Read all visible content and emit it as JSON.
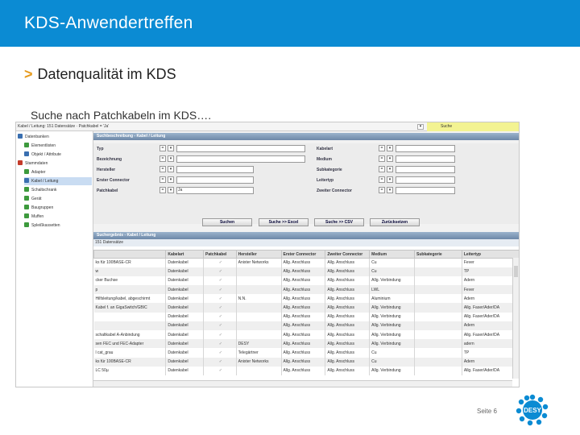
{
  "slide": {
    "title": "KDS-Anwendertreffen",
    "subtitle": "Datenqualität im KDS",
    "subtitle_marker": ">",
    "caption": "Suche nach Patchkabeln im KDS….",
    "page": "Seite 6",
    "logo_text": "DESY",
    "header_color": "#0b8bd3"
  },
  "app": {
    "path": "Kabel / Leitung: 151 Datensätze · Patchkabel = 'Ja'",
    "search_tab": "Suche",
    "sidebar": {
      "items": [
        {
          "label": "Datenbanken",
          "icon": "database-icon",
          "color": "#3a6fb0"
        },
        {
          "label": "Elementlisten",
          "icon": "list-icon",
          "color": "#3d9a3d"
        },
        {
          "label": "Objekt / Attribute",
          "icon": "attribute-icon",
          "color": "#3a6fb0"
        },
        {
          "label": "Stammdaten",
          "icon": "master-data-icon",
          "color": "#c43b2a"
        },
        {
          "label": "Adapter",
          "icon": "adapter-icon",
          "color": "#3d9a3d"
        },
        {
          "label": "Kabel / Leitung",
          "icon": "cable-icon",
          "color": "#3a6fb0"
        },
        {
          "label": "Schaltschrank",
          "icon": "cabinet-icon",
          "color": "#3d9a3d"
        },
        {
          "label": "Gerät",
          "icon": "device-icon",
          "color": "#3d9a3d"
        },
        {
          "label": "Baugruppen",
          "icon": "module-icon",
          "color": "#3d9a3d"
        },
        {
          "label": "Muffen",
          "icon": "sleeve-icon",
          "color": "#3d9a3d"
        },
        {
          "label": "Spleißkassetten",
          "icon": "splice-icon",
          "color": "#3d9a3d"
        }
      ]
    },
    "form": {
      "header": "Suchbeschreibung - Kabel / Leitung",
      "left_labels": [
        "Typ",
        "Bezeichnung",
        "Hersteller",
        "Erster Connector",
        "Patchkabel"
      ],
      "right_labels": [
        "Kabelart",
        "Medium",
        "Subkategorie",
        "Leitertyp",
        "Zweiter Connector"
      ],
      "patchkabel_value": "Ja",
      "buttons": [
        "Suchen",
        "Suche >> Excel",
        "Suche >> CSV",
        "Zurücksetzen"
      ]
    },
    "results": {
      "header": "Suchergebnis - Kabel / Leitung",
      "count": "151 Datensätze",
      "columns": [
        "",
        "Kabelart",
        "Patchkabel",
        "Hersteller",
        "Erster Connector",
        "Zweiter Connector",
        "Medium",
        "Subkategorie",
        "Leitertyp"
      ],
      "rows": [
        [
          "ks für 100BASE-CR",
          "Datenkabel",
          "✓",
          "Anixter Networks",
          "Allg. Anschluss",
          "Allg. Anschluss",
          "Cu",
          "",
          "Fever"
        ],
        [
          "w",
          "Datenkabel",
          "✓",
          "",
          "Allg. Anschluss",
          "Allg. Anschluss",
          "Cu",
          "",
          "TP"
        ],
        [
          "cker Buchse",
          "Datenkabel",
          "✓",
          "",
          "Allg. Anschluss",
          "Allg. Anschluss",
          "Allg. Verbindung",
          "",
          "Adern"
        ],
        [
          "p",
          "Datenkabel",
          "✓",
          "",
          "Allg. Anschluss",
          "Allg. Anschluss",
          "LWL",
          "",
          "Fever"
        ],
        [
          "Hilfsleitung/kabel, abgeschirmt",
          "Datenkabel",
          "✓",
          "N.N.",
          "Allg. Anschluss",
          "Allg. Anschluss",
          "Aluminium",
          "",
          "Adern"
        ],
        [
          "Kabel f. an GigaSwitch/GBIC",
          "Datenkabel",
          "✓",
          "",
          "Allg. Anschluss",
          "Allg. Anschluss",
          "Allg. Verbindung",
          "",
          "Allg. Faser/Ader/DA"
        ],
        [
          "",
          "Datenkabel",
          "✓",
          "",
          "Allg. Anschluss",
          "Allg. Anschluss",
          "Allg. Verbindung",
          "",
          "Allg. Faser/Ader/DA"
        ],
        [
          "",
          "Datenkabel",
          "✓",
          "",
          "Allg. Anschluss",
          "Allg. Anschluss",
          "Allg. Verbindung",
          "",
          "Adern"
        ],
        [
          "schaltkabel A-Anbindung",
          "Datenkabel",
          "✓",
          "",
          "Allg. Anschluss",
          "Allg. Anschluss",
          "Allg. Verbindung",
          "",
          "Allg. Faser/Ader/DA"
        ],
        [
          "sen FEC und FEC-Adapter",
          "Datenkabel",
          "✓",
          "DESY",
          "Allg. Anschluss",
          "Allg. Anschluss",
          "Allg. Verbindung",
          "",
          "adern"
        ],
        [
          "l cat_grau",
          "Datenkabel",
          "✓",
          "Telegärtner",
          "Allg. Anschluss",
          "Allg. Anschluss",
          "Cu",
          "",
          "TP"
        ],
        [
          "ks für 100BASE-CR",
          "Datenkabel",
          "✓",
          "Anixter Networks",
          "Allg. Anschluss",
          "Allg. Anschluss",
          "Cu",
          "",
          "Adern"
        ],
        [
          "LC 50µ",
          "Datenkabel",
          "✓",
          "",
          "Allg. Anschluss",
          "Allg. Anschluss",
          "Allg. Verbindung",
          "",
          "Allg. Faser/Ader/DA"
        ]
      ]
    }
  }
}
